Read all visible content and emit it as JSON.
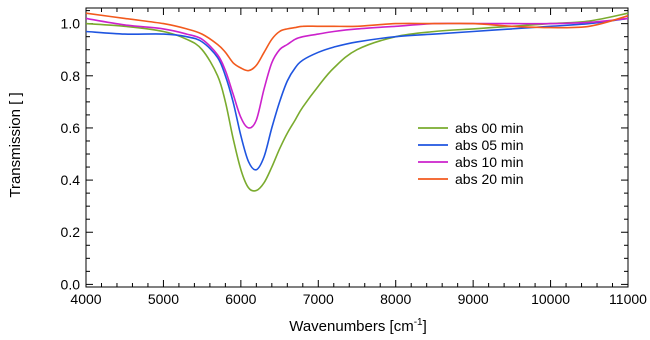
{
  "chart_data": {
    "type": "line",
    "xlabel_main": "Wavenumbers [cm",
    "xlabel_sup": "-1",
    "xlabel_end": "]",
    "ylabel": "Transmission [ ]",
    "xlim": [
      4000,
      11000
    ],
    "ylim": [
      -0.01,
      1.06
    ],
    "x_ticks": [
      4000,
      5000,
      6000,
      7000,
      8000,
      9000,
      10000,
      11000
    ],
    "y_ticks": [
      0.0,
      0.2,
      0.4,
      0.6,
      0.8,
      1.0
    ],
    "grid": false,
    "legend_position": "right",
    "x": [
      4000,
      4500,
      5000,
      5300,
      5500,
      5700,
      5800,
      5900,
      6000,
      6100,
      6200,
      6300,
      6400,
      6500,
      6600,
      6700,
      6800,
      7000,
      7200,
      7500,
      8000,
      8500,
      9000,
      9500,
      10000,
      10500,
      11000
    ],
    "series": [
      {
        "name": "abs 00 min",
        "color": "#7aab2e",
        "values": [
          1.0,
          0.99,
          0.97,
          0.94,
          0.9,
          0.8,
          0.7,
          0.56,
          0.44,
          0.37,
          0.36,
          0.39,
          0.45,
          0.52,
          0.58,
          0.63,
          0.68,
          0.76,
          0.83,
          0.9,
          0.95,
          0.97,
          0.98,
          0.99,
          1.0,
          1.01,
          1.04
        ]
      },
      {
        "name": "abs 05 min",
        "color": "#1f55e0",
        "values": [
          0.97,
          0.96,
          0.96,
          0.95,
          0.93,
          0.87,
          0.8,
          0.7,
          0.57,
          0.47,
          0.44,
          0.49,
          0.6,
          0.7,
          0.78,
          0.83,
          0.86,
          0.89,
          0.91,
          0.93,
          0.95,
          0.96,
          0.97,
          0.98,
          0.99,
          1.0,
          1.02
        ]
      },
      {
        "name": "abs 10 min",
        "color": "#cc22cc",
        "values": [
          1.02,
          0.995,
          0.98,
          0.96,
          0.94,
          0.88,
          0.82,
          0.73,
          0.64,
          0.6,
          0.63,
          0.75,
          0.85,
          0.9,
          0.92,
          0.94,
          0.95,
          0.96,
          0.97,
          0.98,
          0.99,
          1.0,
          1.0,
          1.0,
          1.0,
          1.005,
          1.02
        ]
      },
      {
        "name": "abs 20 min",
        "color": "#f25a1e",
        "values": [
          1.04,
          1.02,
          1.0,
          0.98,
          0.96,
          0.92,
          0.89,
          0.85,
          0.83,
          0.82,
          0.84,
          0.89,
          0.94,
          0.97,
          0.98,
          0.985,
          0.99,
          0.99,
          0.99,
          0.99,
          1.0,
          1.0,
          1.0,
          0.99,
          0.985,
          0.99,
          1.03
        ]
      }
    ]
  }
}
